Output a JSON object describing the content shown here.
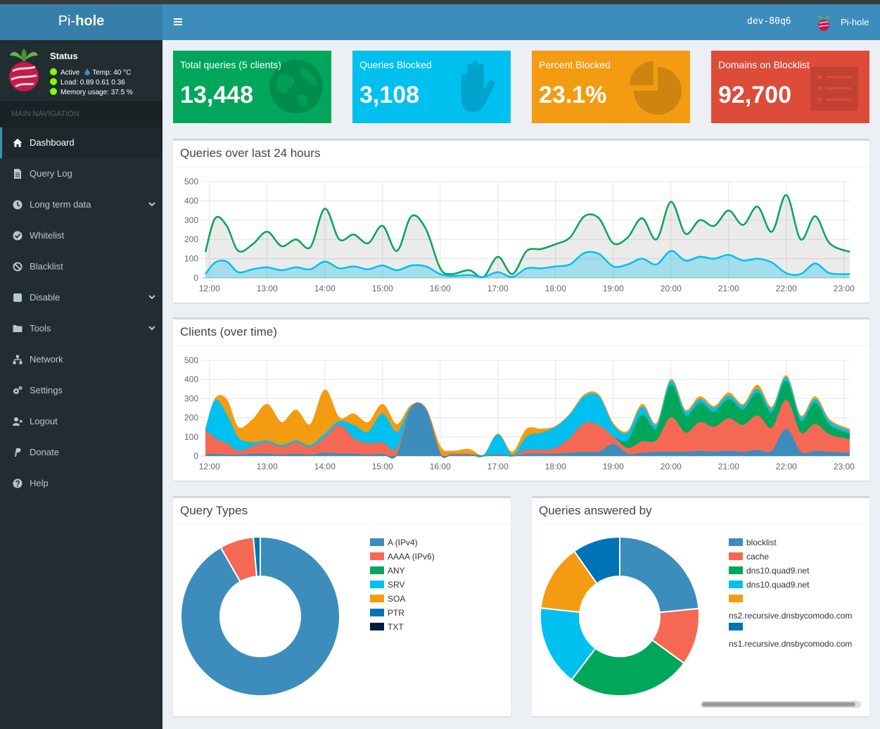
{
  "sidebar": {
    "logo_light": "Pi-",
    "logo_bold": "hole",
    "status_title": "Status",
    "status_active": "Active",
    "status_temp": "Temp: 40 °C",
    "status_load": "Load:  0.89  0.61  0.36",
    "status_memory": "Memory usage:  37.5 %",
    "nav_header": "MAIN NAVIGATION",
    "items": [
      {
        "label": "Dashboard",
        "icon": "home-icon"
      },
      {
        "label": "Query Log",
        "icon": "file-icon"
      },
      {
        "label": "Long term data",
        "icon": "clock-icon"
      },
      {
        "label": "Whitelist",
        "icon": "check-circle-icon"
      },
      {
        "label": "Blacklist",
        "icon": "ban-icon"
      },
      {
        "label": "Disable",
        "icon": "stop-icon"
      },
      {
        "label": "Tools",
        "icon": "folder-icon"
      },
      {
        "label": "Network",
        "icon": "network-icon"
      },
      {
        "label": "Settings",
        "icon": "gears-icon"
      },
      {
        "label": "Logout",
        "icon": "user-times-icon"
      },
      {
        "label": "Donate",
        "icon": "paypal-icon"
      },
      {
        "label": "Help",
        "icon": "question-circle-icon"
      }
    ]
  },
  "header": {
    "hostname": "dev-80q6",
    "user": "Pi-hole"
  },
  "stats": [
    {
      "label": "Total queries (5 clients)",
      "value": "13,448",
      "color": "#00a65a",
      "icon": "globe-icon"
    },
    {
      "label": "Queries Blocked",
      "value": "3,108",
      "color": "#00c0ef",
      "icon": "hand-icon"
    },
    {
      "label": "Percent Blocked",
      "value": "23.1%",
      "color": "#f39c12",
      "icon": "pie-chart-icon"
    },
    {
      "label": "Domains on Blocklist",
      "value": "92,700",
      "color": "#dd4b39",
      "icon": "list-icon"
    }
  ],
  "panels": {
    "queries_title": "Queries over last 24 hours",
    "clients_title": "Clients (over time)",
    "types_title": "Query Types",
    "answered_title": "Queries answered by"
  },
  "chart_data": [
    {
      "type": "area",
      "title": "Queries over last 24 hours",
      "x_ticks": [
        "12:00",
        "13:00",
        "14:00",
        "15:00",
        "16:00",
        "17:00",
        "18:00",
        "19:00",
        "20:00",
        "21:00",
        "22:00",
        "23:00"
      ],
      "y_ticks": [
        0,
        100,
        200,
        300,
        400,
        500
      ],
      "ylim": [
        0,
        500
      ],
      "xlim": [
        11.93,
        23.1
      ],
      "grid": true,
      "series": [
        {
          "color": "#00a65a",
          "x": [
            11.93,
            12.1,
            12.3,
            12.5,
            12.75,
            13.0,
            13.25,
            13.5,
            13.75,
            14.0,
            14.25,
            14.5,
            14.75,
            15.0,
            15.25,
            15.5,
            15.75,
            16.0,
            16.2,
            16.5,
            16.75,
            17.0,
            17.25,
            17.5,
            17.75,
            18.0,
            18.25,
            18.5,
            18.75,
            19.0,
            19.25,
            19.5,
            19.75,
            20.0,
            20.25,
            20.5,
            20.75,
            21.0,
            21.25,
            21.5,
            21.75,
            22.0,
            22.25,
            22.5,
            22.75,
            23.1
          ],
          "values": [
            135,
            310,
            270,
            140,
            175,
            240,
            165,
            200,
            160,
            360,
            200,
            225,
            180,
            270,
            140,
            320,
            255,
            50,
            20,
            40,
            5,
            110,
            20,
            140,
            150,
            175,
            210,
            320,
            310,
            180,
            210,
            310,
            200,
            395,
            230,
            300,
            270,
            350,
            275,
            370,
            240,
            430,
            200,
            320,
            180,
            135
          ]
        },
        {
          "color": "#00c0ef",
          "x": [
            11.93,
            12.1,
            12.3,
            12.5,
            12.75,
            13.0,
            13.25,
            13.5,
            13.75,
            14.0,
            14.25,
            14.5,
            14.75,
            15.0,
            15.25,
            15.5,
            15.75,
            16.0,
            16.2,
            16.5,
            16.75,
            17.0,
            17.25,
            17.5,
            17.75,
            18.0,
            18.25,
            18.5,
            18.75,
            19.0,
            19.25,
            19.5,
            19.75,
            20.0,
            20.25,
            20.5,
            20.75,
            21.0,
            21.25,
            21.5,
            21.75,
            22.0,
            22.25,
            22.5,
            22.75,
            23.1
          ],
          "values": [
            20,
            80,
            85,
            30,
            45,
            55,
            40,
            55,
            45,
            85,
            50,
            60,
            45,
            65,
            40,
            65,
            60,
            20,
            10,
            15,
            5,
            30,
            5,
            50,
            50,
            60,
            70,
            130,
            125,
            60,
            70,
            100,
            70,
            140,
            90,
            110,
            100,
            120,
            90,
            100,
            80,
            25,
            20,
            75,
            25,
            20
          ]
        }
      ]
    },
    {
      "type": "area",
      "title": "Clients (over time)",
      "stacked": true,
      "x_ticks": [
        "12:00",
        "13:00",
        "14:00",
        "15:00",
        "16:00",
        "17:00",
        "18:00",
        "19:00",
        "20:00",
        "21:00",
        "22:00",
        "23:00"
      ],
      "y_ticks": [
        0,
        100,
        200,
        300,
        400,
        500
      ],
      "ylim": [
        0,
        500
      ],
      "xlim": [
        11.93,
        23.1
      ],
      "grid": true,
      "x": [
        11.93,
        12.1,
        12.3,
        12.5,
        12.75,
        13.0,
        13.25,
        13.5,
        13.75,
        14.0,
        14.25,
        14.5,
        14.75,
        15.0,
        15.25,
        15.5,
        15.75,
        16.0,
        16.2,
        16.5,
        16.75,
        17.0,
        17.25,
        17.5,
        17.75,
        18.0,
        18.25,
        18.5,
        18.75,
        19.0,
        19.25,
        19.5,
        19.75,
        20.0,
        20.25,
        20.5,
        20.75,
        21.0,
        21.25,
        21.5,
        21.75,
        22.0,
        22.25,
        22.5,
        22.75,
        23.1
      ],
      "series": [
        {
          "color": "#3c8dbc",
          "values": [
            5,
            10,
            5,
            5,
            10,
            10,
            5,
            10,
            5,
            15,
            10,
            10,
            5,
            10,
            5,
            250,
            240,
            10,
            5,
            5,
            0,
            5,
            0,
            10,
            10,
            10,
            15,
            20,
            20,
            60,
            10,
            15,
            20,
            20,
            20,
            25,
            20,
            25,
            20,
            30,
            25,
            140,
            20,
            25,
            20,
            15
          ]
        },
        {
          "color": "#f56954",
          "values": [
            130,
            80,
            60,
            20,
            40,
            60,
            40,
            60,
            40,
            80,
            150,
            80,
            60,
            60,
            30,
            5,
            5,
            5,
            5,
            5,
            0,
            5,
            0,
            20,
            20,
            30,
            80,
            150,
            140,
            40,
            30,
            60,
            60,
            180,
            100,
            150,
            130,
            170,
            140,
            180,
            120,
            150,
            100,
            140,
            90,
            70
          ]
        },
        {
          "color": "#00a65a",
          "values": [
            0,
            0,
            0,
            0,
            0,
            0,
            0,
            0,
            0,
            0,
            0,
            0,
            0,
            0,
            0,
            0,
            0,
            0,
            0,
            0,
            0,
            0,
            0,
            0,
            0,
            0,
            0,
            0,
            0,
            0,
            40,
            140,
            60,
            170,
            90,
            100,
            80,
            100,
            80,
            120,
            80,
            100,
            60,
            110,
            50,
            30
          ]
        },
        {
          "color": "#00c0ef",
          "values": [
            0,
            200,
            150,
            70,
            20,
            10,
            10,
            10,
            10,
            20,
            20,
            70,
            60,
            150,
            90,
            0,
            0,
            0,
            0,
            0,
            0,
            100,
            5,
            70,
            90,
            110,
            120,
            140,
            150,
            60,
            40,
            40,
            20,
            20,
            20,
            20,
            20,
            20,
            20,
            20,
            20,
            20,
            20,
            20,
            20,
            15
          ]
        },
        {
          "color": "#f39c12",
          "values": [
            0,
            10,
            80,
            55,
            120,
            190,
            120,
            160,
            110,
            230,
            20,
            60,
            50,
            50,
            40,
            10,
            5,
            35,
            15,
            25,
            5,
            5,
            15,
            40,
            20,
            5,
            5,
            10,
            10,
            10,
            10,
            15,
            10,
            10,
            10,
            15,
            10,
            15,
            10,
            20,
            10,
            10,
            10,
            15,
            10,
            10
          ]
        }
      ]
    },
    {
      "type": "pie",
      "title": "Query Types",
      "donut": true,
      "categories": [
        "A (IPv4)",
        "AAAA (IPv6)",
        "ANY",
        "SRV",
        "SOA",
        "PTR",
        "TXT"
      ],
      "values": [
        91.7,
        6.9,
        0,
        0,
        0,
        1.4,
        0
      ],
      "colors": [
        "#3c8dbc",
        "#f56954",
        "#00a65a",
        "#00c0ef",
        "#f39c12",
        "#0073b7",
        "#001f3f"
      ],
      "legend_position": "right"
    },
    {
      "type": "pie",
      "title": "Queries answered by",
      "donut": true,
      "categories": [
        "blocklist",
        "cache",
        "dns10.quad9.net",
        "dns10.quad9.net",
        "ns2.recursive.dnsbycomodo.com",
        "ns1.recursive.dnsbycomodo.com"
      ],
      "values": [
        23.2,
        11.5,
        25.1,
        16.2,
        13.5,
        9.6
      ],
      "colors": [
        "#3c8dbc",
        "#f56954",
        "#00a65a",
        "#00c0ef",
        "#f39c12",
        "#0073b7"
      ],
      "legend_position": "right"
    }
  ]
}
